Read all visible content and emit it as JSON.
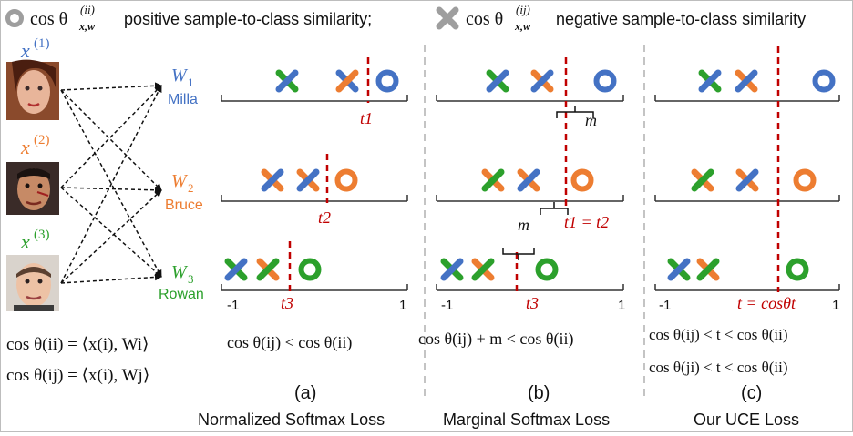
{
  "legend": {
    "positive_text": "positive sample-to-class similarity;",
    "negative_text": "negative sample-to-class similarity",
    "positive_symbol": "cos θ",
    "positive_sup": "(ii)",
    "negative_symbol": "cos θ",
    "negative_sup": "(ij)",
    "sub": "x,w"
  },
  "samples": [
    {
      "label": "x",
      "sup": "(1)",
      "color": "#4472c4"
    },
    {
      "label": "x",
      "sup": "(2)",
      "color": "#ed7d31"
    },
    {
      "label": "x",
      "sup": "(3)",
      "color": "#2ca02c"
    }
  ],
  "classes": [
    {
      "w": "W",
      "sub": "1",
      "name": "Milla",
      "color": "#4472c4"
    },
    {
      "w": "W",
      "sub": "2",
      "name": "Bruce",
      "color": "#ed7d31"
    },
    {
      "w": "W",
      "sub": "3",
      "name": "Rowan",
      "color": "#2ca02c"
    }
  ],
  "definitions": {
    "line1": "cos θ(ii) = ⟨x(i), Wi⟩",
    "line2": "cos θ(ij) = ⟨x(i), Wj⟩"
  },
  "axis": {
    "min": "-1",
    "max": "1"
  },
  "panels": [
    {
      "id": "a",
      "letter": "(a)",
      "title": "Normalized Softmax Loss",
      "thresholds": [
        "t1",
        "t2",
        "t3"
      ],
      "formula": "cos θ(ij) < cos θ(ii)"
    },
    {
      "id": "b",
      "letter": "(b)",
      "title": "Marginal Softmax Loss",
      "margin_label": "m",
      "threshold_eq": "t1 = t2",
      "t3": "t3",
      "formula": "cos θ(ij) + m < cos θ(ii)"
    },
    {
      "id": "c",
      "letter": "(c)",
      "title": "Our UCE Loss",
      "threshold_eq": "t = cosθt",
      "formula1": "cos θ(ij) < t < cos θ(ii)",
      "formula2": "cos θ(ji) < t < cos θ(ii)"
    }
  ],
  "colors": {
    "blue": "#4472c4",
    "orange": "#ed7d31",
    "green": "#2ca02c",
    "threshold": "#c00000",
    "gray_marker": "#9e9e9e",
    "divider": "#b0b0b0"
  }
}
